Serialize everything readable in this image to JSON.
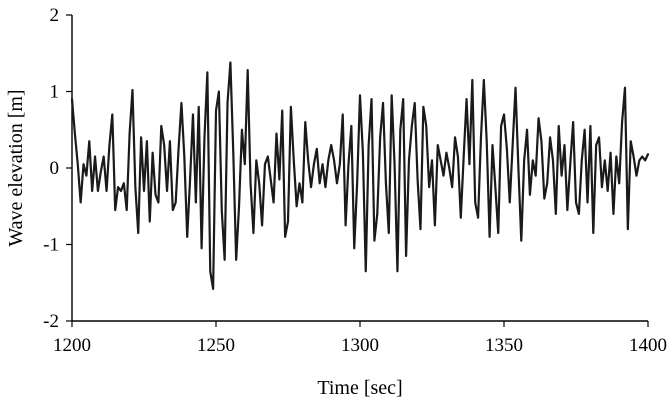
{
  "chart_data": {
    "type": "line",
    "title": "",
    "xlabel": "Time [sec]",
    "ylabel": "Wave elevation [m]",
    "xlim": [
      1200,
      1400
    ],
    "ylim": [
      -2,
      2
    ],
    "x_ticks": [
      1200,
      1250,
      1300,
      1350,
      1400
    ],
    "y_ticks": [
      -2,
      -1,
      0,
      1,
      2
    ],
    "grid": false,
    "legend": "none",
    "line_color": "#1a1a1a",
    "series": [
      {
        "x": [
          1200,
          1201,
          1202,
          1203,
          1204,
          1205,
          1206,
          1207,
          1208,
          1209,
          1210,
          1211,
          1212,
          1213,
          1214,
          1215,
          1216,
          1217,
          1218,
          1219,
          1220,
          1221,
          1222,
          1223,
          1224,
          1225,
          1226,
          1227,
          1228,
          1229,
          1230,
          1231,
          1232,
          1233,
          1234,
          1235,
          1236,
          1237,
          1238,
          1239,
          1240,
          1241,
          1242,
          1243,
          1244,
          1245,
          1246,
          1247,
          1248,
          1249,
          1250,
          1251,
          1252,
          1253,
          1254,
          1255,
          1256,
          1257,
          1258,
          1259,
          1260,
          1261,
          1262,
          1263,
          1264,
          1265,
          1266,
          1267,
          1268,
          1269,
          1270,
          1271,
          1272,
          1273,
          1274,
          1275,
          1276,
          1277,
          1278,
          1279,
          1280,
          1281,
          1282,
          1283,
          1284,
          1285,
          1286,
          1287,
          1288,
          1289,
          1290,
          1291,
          1292,
          1293,
          1294,
          1295,
          1296,
          1297,
          1298,
          1299,
          1300,
          1301,
          1302,
          1303,
          1304,
          1305,
          1306,
          1307,
          1308,
          1309,
          1310,
          1311,
          1312,
          1313,
          1314,
          1315,
          1316,
          1317,
          1318,
          1319,
          1320,
          1321,
          1322,
          1323,
          1324,
          1325,
          1326,
          1327,
          1328,
          1329,
          1330,
          1331,
          1332,
          1333,
          1334,
          1335,
          1336,
          1337,
          1338,
          1339,
          1340,
          1341,
          1342,
          1343,
          1344,
          1345,
          1346,
          1347,
          1348,
          1349,
          1350,
          1351,
          1352,
          1353,
          1354,
          1355,
          1356,
          1357,
          1358,
          1359,
          1360,
          1361,
          1362,
          1363,
          1364,
          1365,
          1366,
          1367,
          1368,
          1369,
          1370,
          1371,
          1372,
          1373,
          1374,
          1375,
          1376,
          1377,
          1378,
          1379,
          1380,
          1381,
          1382,
          1383,
          1384,
          1385,
          1386,
          1387,
          1388,
          1389,
          1390,
          1391,
          1392,
          1393,
          1394,
          1395,
          1396,
          1397,
          1398,
          1399,
          1400
        ],
        "y": [
          0.9,
          0.45,
          0.05,
          -0.45,
          0.05,
          -0.1,
          0.35,
          -0.3,
          0.15,
          -0.3,
          -0.05,
          0.15,
          -0.3,
          0.3,
          0.7,
          -0.55,
          -0.25,
          -0.3,
          -0.2,
          -0.55,
          0.45,
          1.02,
          -0.25,
          -0.85,
          0.4,
          -0.3,
          0.35,
          -0.7,
          0.2,
          -0.35,
          -0.45,
          0.55,
          0.3,
          -0.3,
          0.35,
          -0.55,
          -0.45,
          0.25,
          0.85,
          0.15,
          -0.9,
          -0.15,
          0.7,
          -0.45,
          0.8,
          -1.05,
          0.4,
          1.25,
          -1.35,
          -1.58,
          0.75,
          1.0,
          -0.55,
          -1.2,
          0.85,
          1.38,
          0.2,
          -1.2,
          -0.5,
          0.5,
          0.05,
          1.28,
          -0.2,
          -0.85,
          0.1,
          -0.2,
          -0.75,
          0.05,
          0.15,
          -0.15,
          -0.45,
          0.45,
          -0.15,
          0.75,
          -0.9,
          -0.7,
          0.8,
          0.1,
          -0.5,
          -0.2,
          -0.45,
          0.6,
          0.1,
          -0.25,
          0.05,
          0.25,
          -0.2,
          0.05,
          -0.25,
          0.1,
          0.3,
          0.1,
          -0.2,
          0.05,
          0.7,
          -0.75,
          0.05,
          0.55,
          -1.05,
          -0.2,
          0.95,
          0.2,
          -1.35,
          0.3,
          0.9,
          -0.95,
          -0.6,
          0.4,
          0.85,
          -0.2,
          -0.85,
          0.95,
          0.05,
          -1.35,
          0.5,
          0.9,
          -1.15,
          0.1,
          0.55,
          0.85,
          -0.15,
          -0.8,
          0.8,
          0.55,
          -0.25,
          0.1,
          -0.75,
          0.3,
          0.1,
          -0.1,
          0.2,
          0.0,
          -0.25,
          0.4,
          0.15,
          -0.65,
          0.15,
          0.9,
          0.05,
          1.15,
          -0.45,
          -0.65,
          0.4,
          1.15,
          0.35,
          -0.9,
          0.3,
          -0.25,
          -0.85,
          0.55,
          0.7,
          0.25,
          -0.45,
          0.3,
          1.05,
          0.0,
          -0.95,
          0.1,
          0.5,
          -0.35,
          0.1,
          -0.1,
          0.65,
          0.35,
          -0.4,
          -0.2,
          0.4,
          0.1,
          -0.6,
          0.55,
          -0.1,
          0.3,
          -0.55,
          0.05,
          0.6,
          -0.45,
          -0.6,
          0.1,
          0.5,
          -0.45,
          0.55,
          -0.85,
          0.3,
          0.4,
          -0.25,
          0.1,
          -0.3,
          0.2,
          -0.6,
          0.15,
          -0.2,
          0.6,
          1.05,
          -0.8,
          0.35,
          0.15,
          -0.1,
          0.1,
          0.15,
          0.1,
          0.18
        ]
      }
    ]
  }
}
